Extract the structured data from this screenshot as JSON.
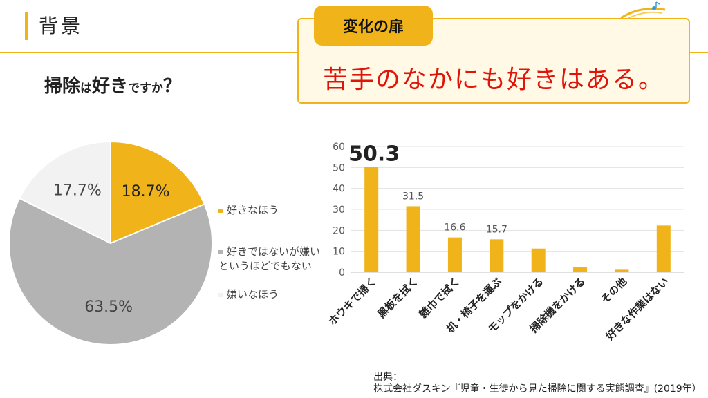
{
  "header": {
    "title": "背景"
  },
  "callout": {
    "label": "変化の扉",
    "text": "苦手のなかにも好きはある。"
  },
  "question": {
    "part1": "掃除",
    "part2": "は",
    "part3": "好き",
    "part4": "ですか",
    "part5": "？"
  },
  "colors": {
    "accent": "#f0b41a",
    "gray": "#b3b3b3",
    "light_gray": "#f2f2f2",
    "red": "#e0150a"
  },
  "chart_data": [
    {
      "type": "pie",
      "title": "掃除は好きですか？",
      "slices": [
        {
          "label": "好きなほう",
          "value": 18.7,
          "display": "18.7%",
          "color": "#f0b41a"
        },
        {
          "label": "好きではないが嫌いというほどでもない",
          "value": 63.5,
          "display": "63.5%",
          "color": "#b3b3b3"
        },
        {
          "label": "嫌いなほう",
          "value": 17.7,
          "display": "17.7%",
          "color": "#f2f2f2"
        }
      ],
      "legend": [
        {
          "lines": [
            "好きなほう"
          ],
          "color": "#f0b41a"
        },
        {
          "lines": [
            "好きではないが嫌い",
            "というほどでもない"
          ],
          "color": "#b3b3b3"
        },
        {
          "lines": [
            "嫌いなほう"
          ],
          "color": "#f2f2f2"
        }
      ]
    },
    {
      "type": "bar",
      "categories": [
        "ホウキで掃く",
        "黒板を拭く",
        "雑巾で拭く",
        "机・椅子を運ぶ",
        "モップをかける",
        "掃除機をかける",
        "その他",
        "好きな作業はない"
      ],
      "values": [
        50.3,
        31.5,
        16.6,
        15.7,
        11.3,
        2.3,
        1.2,
        22.3
      ],
      "labels": [
        "50.3",
        "31.5",
        "16.6",
        "15.7",
        "",
        "",
        "",
        ""
      ],
      "ylim": [
        0,
        60
      ],
      "yticks": [
        0,
        10,
        20,
        30,
        40,
        50,
        60
      ],
      "color": "#f0b41a"
    }
  ],
  "source": {
    "line1": "出典：",
    "line2": "株式会社ダスキン『児童・生徒から見た掃除に関する実態調査』(2019年）"
  }
}
